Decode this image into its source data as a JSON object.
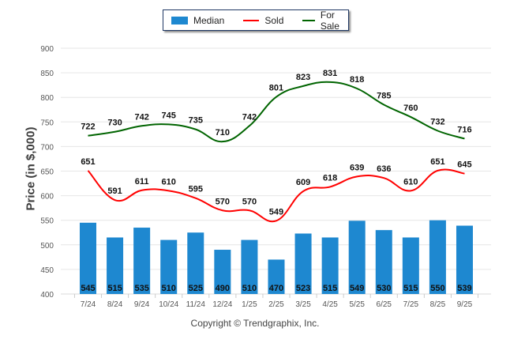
{
  "chart_data": {
    "type": "bar",
    "title": "",
    "xlabel": "",
    "ylabel": "Price (in $,000)",
    "ylim": [
      400,
      900
    ],
    "yticks": [
      400,
      450,
      500,
      550,
      600,
      650,
      700,
      750,
      800,
      850,
      900
    ],
    "grid": true,
    "legend_position": "top-center",
    "categories": [
      "7/24",
      "8/24",
      "9/24",
      "10/24",
      "11/24",
      "12/24",
      "1/25",
      "2/25",
      "3/25",
      "4/25",
      "5/25",
      "6/25",
      "7/25",
      "8/25",
      "9/25"
    ],
    "series": [
      {
        "name": "Median",
        "kind": "bar",
        "color": "#1e88d0",
        "values": [
          545,
          515,
          535,
          510,
          525,
          490,
          510,
          470,
          523,
          515,
          549,
          530,
          515,
          550,
          539
        ]
      },
      {
        "name": "Sold",
        "kind": "line",
        "color": "#ff0000",
        "values": [
          651,
          591,
          611,
          610,
          595,
          570,
          570,
          549,
          609,
          618,
          639,
          636,
          610,
          651,
          645
        ]
      },
      {
        "name": "For Sale",
        "kind": "line",
        "color": "#006400",
        "values": [
          722,
          730,
          742,
          745,
          735,
          710,
          742,
          801,
          823,
          831,
          818,
          785,
          760,
          732,
          716
        ]
      }
    ]
  },
  "legend": {
    "items": [
      {
        "label": "Median",
        "color": "#1e88d0"
      },
      {
        "label": "Sold",
        "color": "#ff0000"
      },
      {
        "label": "For Sale",
        "color": "#006400"
      }
    ]
  },
  "footer": {
    "copyright": "Copyright © Trendgraphix, Inc."
  }
}
